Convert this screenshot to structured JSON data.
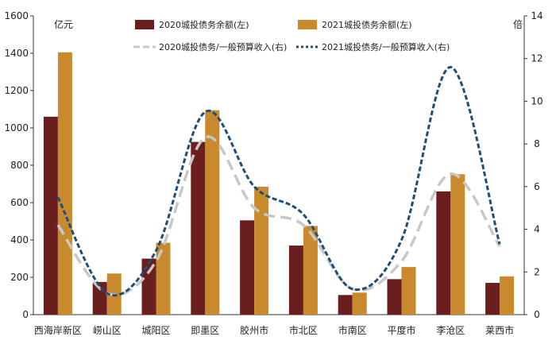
{
  "chart_data": {
    "type": "bar",
    "title": "",
    "categories": [
      "西海岸新区",
      "崂山区",
      "城阳区",
      "即墨区",
      "胶州市",
      "市北区",
      "市南区",
      "平度市",
      "李沧区",
      "莱西市"
    ],
    "left_axis": {
      "unit": "亿元",
      "ticks": [
        "0",
        "200",
        "400",
        "600",
        "800",
        "1000",
        "1200",
        "1400",
        "1600"
      ],
      "range": [
        0,
        1600
      ]
    },
    "right_axis": {
      "unit": "倍",
      "ticks": [
        "0",
        "2",
        "4",
        "6",
        "8",
        "10",
        "12",
        "14"
      ],
      "range": [
        0,
        14
      ]
    },
    "series": [
      {
        "name": "2020城投债务余额(左)",
        "kind": "bar",
        "axis": "left",
        "color": "#6b1e1e",
        "values": [
          1060,
          175,
          300,
          925,
          505,
          370,
          105,
          190,
          660,
          170
        ]
      },
      {
        "name": "2021城投债务余额(左)",
        "kind": "bar",
        "axis": "left",
        "color": "#c98a2e",
        "values": [
          1405,
          220,
          385,
          1095,
          685,
          475,
          118,
          255,
          752,
          205
        ]
      },
      {
        "name": "2020城投债务/一般预算收入(右)",
        "kind": "line",
        "style": "dashed",
        "axis": "right",
        "color": "#c8c8c8",
        "values": [
          4.2,
          1.0,
          2.5,
          8.3,
          5.0,
          4.2,
          1.2,
          2.5,
          6.6,
          3.2
        ]
      },
      {
        "name": "2021城投债务/一般预算收入(右)",
        "kind": "line",
        "style": "dotted",
        "axis": "right",
        "color": "#1f4e79",
        "values": [
          5.5,
          1.0,
          3.0,
          9.5,
          6.0,
          4.7,
          1.2,
          3.5,
          11.6,
          3.3
        ]
      }
    ],
    "legend_position": "top",
    "grid": false
  }
}
